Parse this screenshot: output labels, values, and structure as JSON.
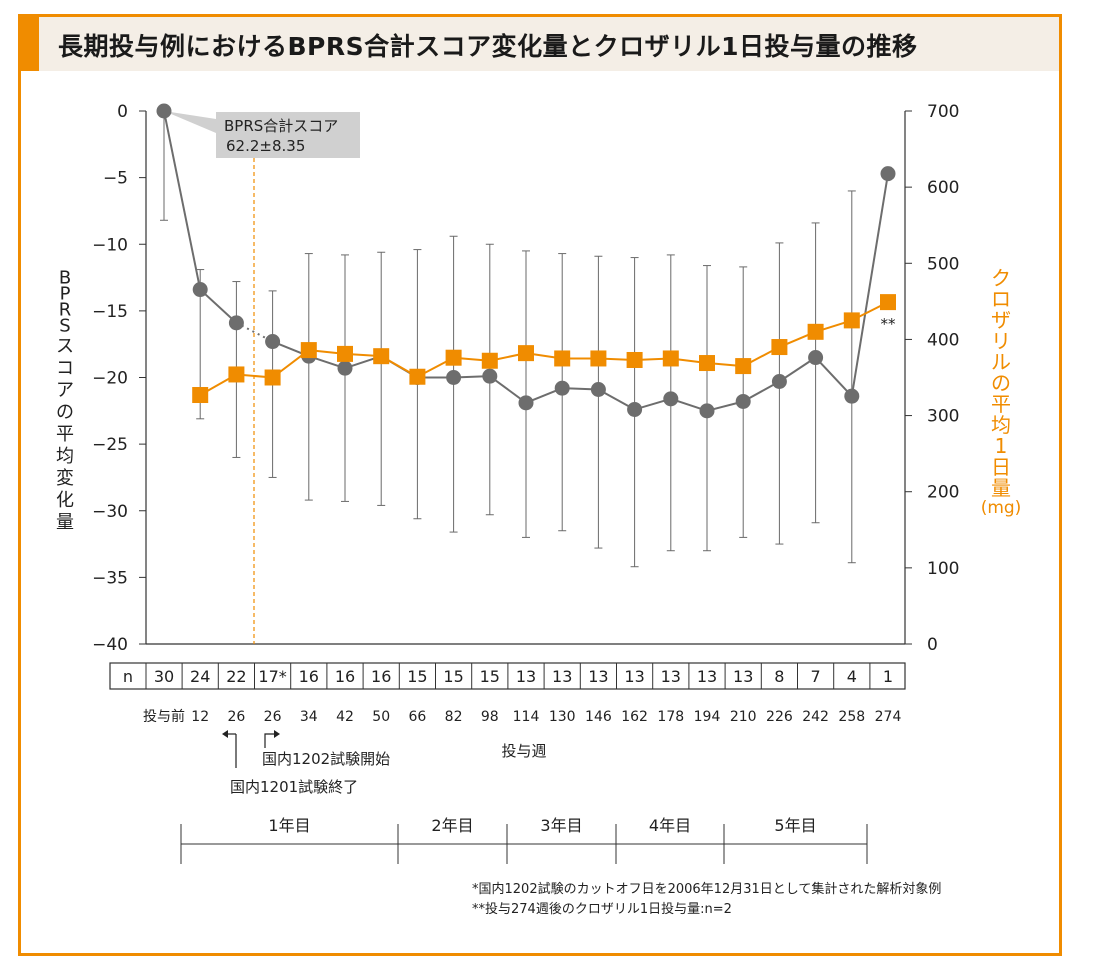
{
  "title": "長期投与例におけるBPRS合計スコア変化量とクロザリル1日投与量の推移",
  "colors": {
    "accent": "#f08c00",
    "score_line": "#6d6d6d",
    "grid": "#555555"
  },
  "chart_data": {
    "type": "line",
    "x_unit_label": "投与週",
    "x_categories": [
      "投与前",
      "12",
      "26",
      "26",
      "34",
      "42",
      "50",
      "66",
      "82",
      "98",
      "114",
      "130",
      "146",
      "162",
      "178",
      "194",
      "210",
      "226",
      "242",
      "258",
      "274"
    ],
    "left_axis": {
      "label": "BPRSスコアの平均変化量",
      "ylim": [
        -40,
        0
      ],
      "ticks": [
        "0",
        "−5",
        "−10",
        "−15",
        "−20",
        "−25",
        "−30",
        "−35",
        "−40"
      ]
    },
    "right_axis": {
      "label": "クロザリルの平均1日量",
      "unit": "(mg)",
      "ylim": [
        0,
        700
      ],
      "ticks": [
        "700",
        "600",
        "500",
        "400",
        "300",
        "200",
        "100",
        "0"
      ]
    },
    "series": [
      {
        "name": "BPRSスコアの平均変化量",
        "axis": "left",
        "values": [
          0,
          -13.4,
          -15.9,
          -17.3,
          -18.4,
          -19.3,
          -18.4,
          -20.0,
          -20.0,
          -19.9,
          -21.9,
          -20.8,
          -20.9,
          -22.4,
          -21.6,
          -22.5,
          -21.8,
          -20.3,
          -18.5,
          -21.4,
          -4.7
        ],
        "err_low": [
          -8.2,
          -23.1,
          -26.0,
          -27.5,
          -29.2,
          -29.3,
          -29.6,
          -30.6,
          -31.6,
          -30.3,
          -32.0,
          -31.5,
          -32.8,
          -34.2,
          -33.0,
          -33.0,
          -32.0,
          -32.5,
          -30.9,
          -33.9,
          null
        ],
        "err_high": [
          0,
          -11.9,
          -12.8,
          -13.5,
          -10.7,
          -10.8,
          -10.6,
          -10.4,
          -9.4,
          -10.0,
          -10.5,
          -10.7,
          -10.9,
          -11.0,
          -10.8,
          -11.6,
          -11.7,
          -9.9,
          -8.4,
          -6.0,
          null
        ],
        "dotted_segment_between": [
          2,
          3
        ]
      },
      {
        "name": "クロザリルの平均1日量",
        "axis": "right",
        "values": [
          null,
          327,
          354,
          350,
          386,
          381,
          378,
          351,
          376,
          372,
          382,
          375,
          375,
          373,
          375,
          369,
          365,
          390,
          410,
          425,
          449
        ]
      }
    ],
    "n_label": "n",
    "n_values": [
      "30",
      "24",
      "22",
      "17*",
      "16",
      "16",
      "16",
      "15",
      "15",
      "15",
      "13",
      "13",
      "13",
      "13",
      "13",
      "13",
      "13",
      "8",
      "7",
      "4",
      "1"
    ],
    "baseline_annotation": [
      "BPRS合計スコア",
      "62.2±8.35"
    ],
    "double_star": "**",
    "event_end": "国内1201試験終了",
    "event_start": "国内1202試験開始",
    "years": [
      "1年目",
      "2年目",
      "3年目",
      "4年目",
      "5年目"
    ],
    "footnotes": [
      "*国内1202試験のカットオフ日を2006年12月31日として集計された解析対象例",
      "**投与274週後のクロザリル1日投与量:n=2"
    ]
  }
}
